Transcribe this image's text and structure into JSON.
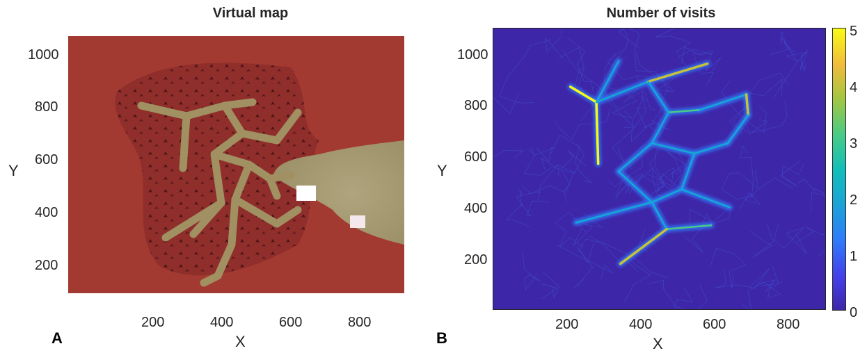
{
  "chart_data": [
    {
      "type": "heatmap",
      "panel": "A",
      "title": "Virtual map",
      "xlabel": "X",
      "ylabel": "Y",
      "xlim": [
        0,
        920
      ],
      "ylim": [
        100,
        1070
      ],
      "xticks": [
        200,
        400,
        600,
        800
      ],
      "yticks": [
        200,
        400,
        600,
        800,
        1000
      ],
      "colors": {
        "terrain": "#a33a32",
        "paths": "#9b8e62",
        "open_area": "#a39872",
        "trees": "#4a1418"
      }
    },
    {
      "type": "heatmap",
      "panel": "B",
      "title": "Number of visits",
      "xlabel": "X",
      "ylabel": "Y",
      "xlim": [
        0,
        900
      ],
      "ylim": [
        0,
        1100
      ],
      "xticks": [
        200,
        400,
        600,
        800
      ],
      "yticks": [
        200,
        400,
        600,
        800,
        1000
      ],
      "colorbar": {
        "min": 0,
        "max": 5,
        "ticks": [
          0,
          1,
          2,
          3,
          4,
          5
        ],
        "colormap": "parula"
      },
      "path_network": [
        {
          "from": [
            210,
            870
          ],
          "to": [
            280,
            810
          ],
          "visits": 5
        },
        {
          "from": [
            280,
            810
          ],
          "to": [
            285,
            570
          ],
          "visits": 5
        },
        {
          "from": [
            280,
            810
          ],
          "to": [
            340,
            970
          ],
          "visits": 2
        },
        {
          "from": [
            280,
            810
          ],
          "to": [
            420,
            890
          ],
          "visits": 2
        },
        {
          "from": [
            420,
            890
          ],
          "to": [
            580,
            960
          ],
          "visits": 4
        },
        {
          "from": [
            420,
            890
          ],
          "to": [
            475,
            770
          ],
          "visits": 2
        },
        {
          "from": [
            475,
            770
          ],
          "to": [
            560,
            780
          ],
          "visits": 3
        },
        {
          "from": [
            560,
            780
          ],
          "to": [
            685,
            840
          ],
          "visits": 2
        },
        {
          "from": [
            685,
            840
          ],
          "to": [
            690,
            760
          ],
          "visits": 4
        },
        {
          "from": [
            690,
            760
          ],
          "to": [
            635,
            650
          ],
          "visits": 2
        },
        {
          "from": [
            635,
            650
          ],
          "to": [
            545,
            610
          ],
          "visits": 2
        },
        {
          "from": [
            475,
            770
          ],
          "to": [
            430,
            650
          ],
          "visits": 2
        },
        {
          "from": [
            430,
            650
          ],
          "to": [
            545,
            610
          ],
          "visits": 2
        },
        {
          "from": [
            430,
            650
          ],
          "to": [
            340,
            540
          ],
          "visits": 2
        },
        {
          "from": [
            545,
            610
          ],
          "to": [
            510,
            470
          ],
          "visits": 2
        },
        {
          "from": [
            510,
            470
          ],
          "to": [
            640,
            400
          ],
          "visits": 2
        },
        {
          "from": [
            510,
            470
          ],
          "to": [
            430,
            420
          ],
          "visits": 2
        },
        {
          "from": [
            340,
            540
          ],
          "to": [
            430,
            420
          ],
          "visits": 2
        },
        {
          "from": [
            430,
            420
          ],
          "to": [
            225,
            340
          ],
          "visits": 2
        },
        {
          "from": [
            430,
            420
          ],
          "to": [
            470,
            315
          ],
          "visits": 2
        },
        {
          "from": [
            470,
            315
          ],
          "to": [
            590,
            330
          ],
          "visits": 3
        },
        {
          "from": [
            470,
            315
          ],
          "to": [
            345,
            180
          ],
          "visits": 4
        }
      ]
    }
  ],
  "labels": {
    "a_title": "Virtual map",
    "b_title": "Number of visits",
    "a_letter": "A",
    "b_letter": "B",
    "a_xlabel": "X",
    "a_ylabel": "Y",
    "b_xlabel": "X",
    "b_ylabel": "Y"
  },
  "ticks": {
    "a_x": [
      "200",
      "400",
      "600",
      "800"
    ],
    "a_y": [
      "1000",
      "800",
      "600",
      "400",
      "200"
    ],
    "b_x": [
      "200",
      "400",
      "600",
      "800"
    ],
    "b_y": [
      "1000",
      "800",
      "600",
      "400",
      "200"
    ],
    "cb": [
      "5",
      "4",
      "3",
      "2",
      "1",
      "0"
    ]
  }
}
